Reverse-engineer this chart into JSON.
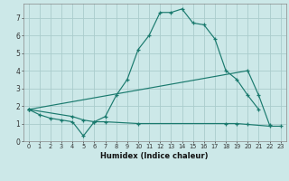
{
  "xlabel": "Humidex (Indice chaleur)",
  "bg_color": "#cce8e8",
  "grid_color": "#aacccc",
  "line_color": "#1a7a6e",
  "xlim": [
    -0.5,
    23.5
  ],
  "ylim": [
    0,
    7.8
  ],
  "xticks": [
    0,
    1,
    2,
    3,
    4,
    5,
    6,
    7,
    8,
    9,
    10,
    11,
    12,
    13,
    14,
    15,
    16,
    17,
    18,
    19,
    20,
    21,
    22,
    23
  ],
  "yticks": [
    0,
    1,
    2,
    3,
    4,
    5,
    6,
    7
  ],
  "line1_x": [
    0,
    1,
    2,
    3,
    4,
    5,
    6,
    7,
    8,
    9,
    10,
    11,
    12,
    13,
    14,
    15,
    16,
    17,
    18,
    19,
    20,
    21
  ],
  "line1_y": [
    1.8,
    1.5,
    1.3,
    1.2,
    1.1,
    0.3,
    1.1,
    1.4,
    2.6,
    3.5,
    5.2,
    6.0,
    7.3,
    7.3,
    7.5,
    6.7,
    6.6,
    5.8,
    4.0,
    3.5,
    2.6,
    1.8
  ],
  "line2_pts": [
    [
      0,
      1.8
    ],
    [
      20,
      4.0
    ],
    [
      21,
      2.6
    ],
    [
      22,
      0.9
    ]
  ],
  "line3_pts": [
    [
      0,
      1.8
    ],
    [
      4,
      1.4
    ],
    [
      5,
      1.2
    ],
    [
      6,
      1.1
    ],
    [
      7,
      1.1
    ],
    [
      10,
      1.0
    ],
    [
      18,
      1.0
    ],
    [
      19,
      1.0
    ],
    [
      20,
      0.95
    ],
    [
      22,
      0.85
    ],
    [
      23,
      0.85
    ]
  ]
}
